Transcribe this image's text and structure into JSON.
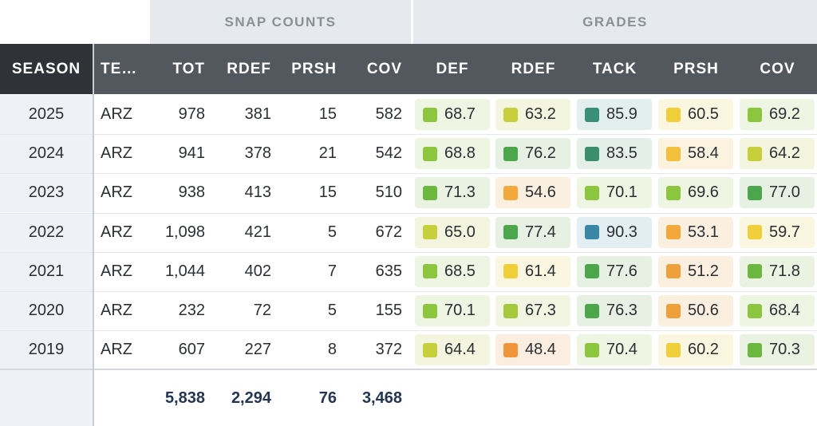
{
  "group_headers": {
    "snap_counts": "SNAP COUNTS",
    "grades": "GRADES"
  },
  "columns": {
    "season": "SEASON",
    "team": "TE…",
    "tot": "TOT",
    "rdef": "RDEF",
    "prsh": "PRSH",
    "cov": "COV",
    "g_def": "DEF",
    "g_rdef": "RDEF",
    "g_tack": "TACK",
    "g_prsh": "PRSH",
    "g_cov": "COV"
  },
  "rows": [
    {
      "season": "2025",
      "team": "ARZ",
      "tot": "978",
      "rdef": "381",
      "prsh": "15",
      "cov": "582",
      "grades": [
        {
          "v": "68.7",
          "c": "#8cc63f",
          "bg": "#eef5e3"
        },
        {
          "v": "63.2",
          "c": "#c8cf3c",
          "bg": "#f4f5df"
        },
        {
          "v": "85.9",
          "c": "#3a8f78",
          "bg": "#e3efec"
        },
        {
          "v": "60.5",
          "c": "#f0cf3a",
          "bg": "#fbf6df"
        },
        {
          "v": "69.2",
          "c": "#8cc63f",
          "bg": "#eef5e3"
        }
      ]
    },
    {
      "season": "2024",
      "team": "ARZ",
      "tot": "941",
      "rdef": "378",
      "prsh": "21",
      "cov": "542",
      "grades": [
        {
          "v": "68.8",
          "c": "#8cc63f",
          "bg": "#eef5e3"
        },
        {
          "v": "76.2",
          "c": "#4ca64c",
          "bg": "#e6f1e4"
        },
        {
          "v": "83.5",
          "c": "#3a8f6a",
          "bg": "#e3efe8"
        },
        {
          "v": "58.4",
          "c": "#f2c03a",
          "bg": "#fbf3df"
        },
        {
          "v": "64.2",
          "c": "#c8cf3c",
          "bg": "#f4f5df"
        }
      ]
    },
    {
      "season": "2023",
      "team": "ARZ",
      "tot": "938",
      "rdef": "413",
      "prsh": "15",
      "cov": "510",
      "grades": [
        {
          "v": "71.3",
          "c": "#6cb83f",
          "bg": "#eaf3e2"
        },
        {
          "v": "54.6",
          "c": "#f2a83a",
          "bg": "#fbf0e0"
        },
        {
          "v": "70.1",
          "c": "#8cc63f",
          "bg": "#eef5e3"
        },
        {
          "v": "69.6",
          "c": "#8cc63f",
          "bg": "#eef5e3"
        },
        {
          "v": "77.0",
          "c": "#4ca64c",
          "bg": "#e6f1e4"
        }
      ]
    },
    {
      "season": "2022",
      "team": "ARZ",
      "tot": "1,098",
      "rdef": "421",
      "prsh": "5",
      "cov": "672",
      "grades": [
        {
          "v": "65.0",
          "c": "#c8cf3c",
          "bg": "#f4f5df"
        },
        {
          "v": "77.4",
          "c": "#4ca64c",
          "bg": "#e6f1e4"
        },
        {
          "v": "90.3",
          "c": "#3a86a6",
          "bg": "#e3eef3"
        },
        {
          "v": "53.1",
          "c": "#f2a83a",
          "bg": "#fbf0e0"
        },
        {
          "v": "59.7",
          "c": "#f0cf3a",
          "bg": "#fbf6df"
        }
      ]
    },
    {
      "season": "2021",
      "team": "ARZ",
      "tot": "1,044",
      "rdef": "402",
      "prsh": "7",
      "cov": "635",
      "grades": [
        {
          "v": "68.5",
          "c": "#8cc63f",
          "bg": "#eef5e3"
        },
        {
          "v": "61.4",
          "c": "#f0cf3a",
          "bg": "#fbf6df"
        },
        {
          "v": "77.6",
          "c": "#4ca64c",
          "bg": "#e6f1e4"
        },
        {
          "v": "51.2",
          "c": "#f0a03a",
          "bg": "#fbefe0"
        },
        {
          "v": "71.8",
          "c": "#6cb83f",
          "bg": "#eaf3e2"
        }
      ]
    },
    {
      "season": "2020",
      "team": "ARZ",
      "tot": "232",
      "rdef": "72",
      "prsh": "5",
      "cov": "155",
      "grades": [
        {
          "v": "70.1",
          "c": "#8cc63f",
          "bg": "#eef5e3"
        },
        {
          "v": "67.3",
          "c": "#a6c83c",
          "bg": "#f1f5e1"
        },
        {
          "v": "76.3",
          "c": "#4ca64c",
          "bg": "#e6f1e4"
        },
        {
          "v": "50.6",
          "c": "#f0a03a",
          "bg": "#fbefe0"
        },
        {
          "v": "68.4",
          "c": "#8cc63f",
          "bg": "#eef5e3"
        }
      ]
    },
    {
      "season": "2019",
      "team": "ARZ",
      "tot": "607",
      "rdef": "227",
      "prsh": "8",
      "cov": "372",
      "grades": [
        {
          "v": "64.4",
          "c": "#c8cf3c",
          "bg": "#f4f5df"
        },
        {
          "v": "48.4",
          "c": "#f0963a",
          "bg": "#fbede0"
        },
        {
          "v": "70.4",
          "c": "#8cc63f",
          "bg": "#eef5e3"
        },
        {
          "v": "60.2",
          "c": "#f0cf3a",
          "bg": "#fbf6df"
        },
        {
          "v": "70.3",
          "c": "#6cb83f",
          "bg": "#eaf3e2"
        }
      ]
    }
  ],
  "totals": {
    "tot": "5,838",
    "rdef": "2,294",
    "prsh": "76",
    "cov": "3,468"
  }
}
